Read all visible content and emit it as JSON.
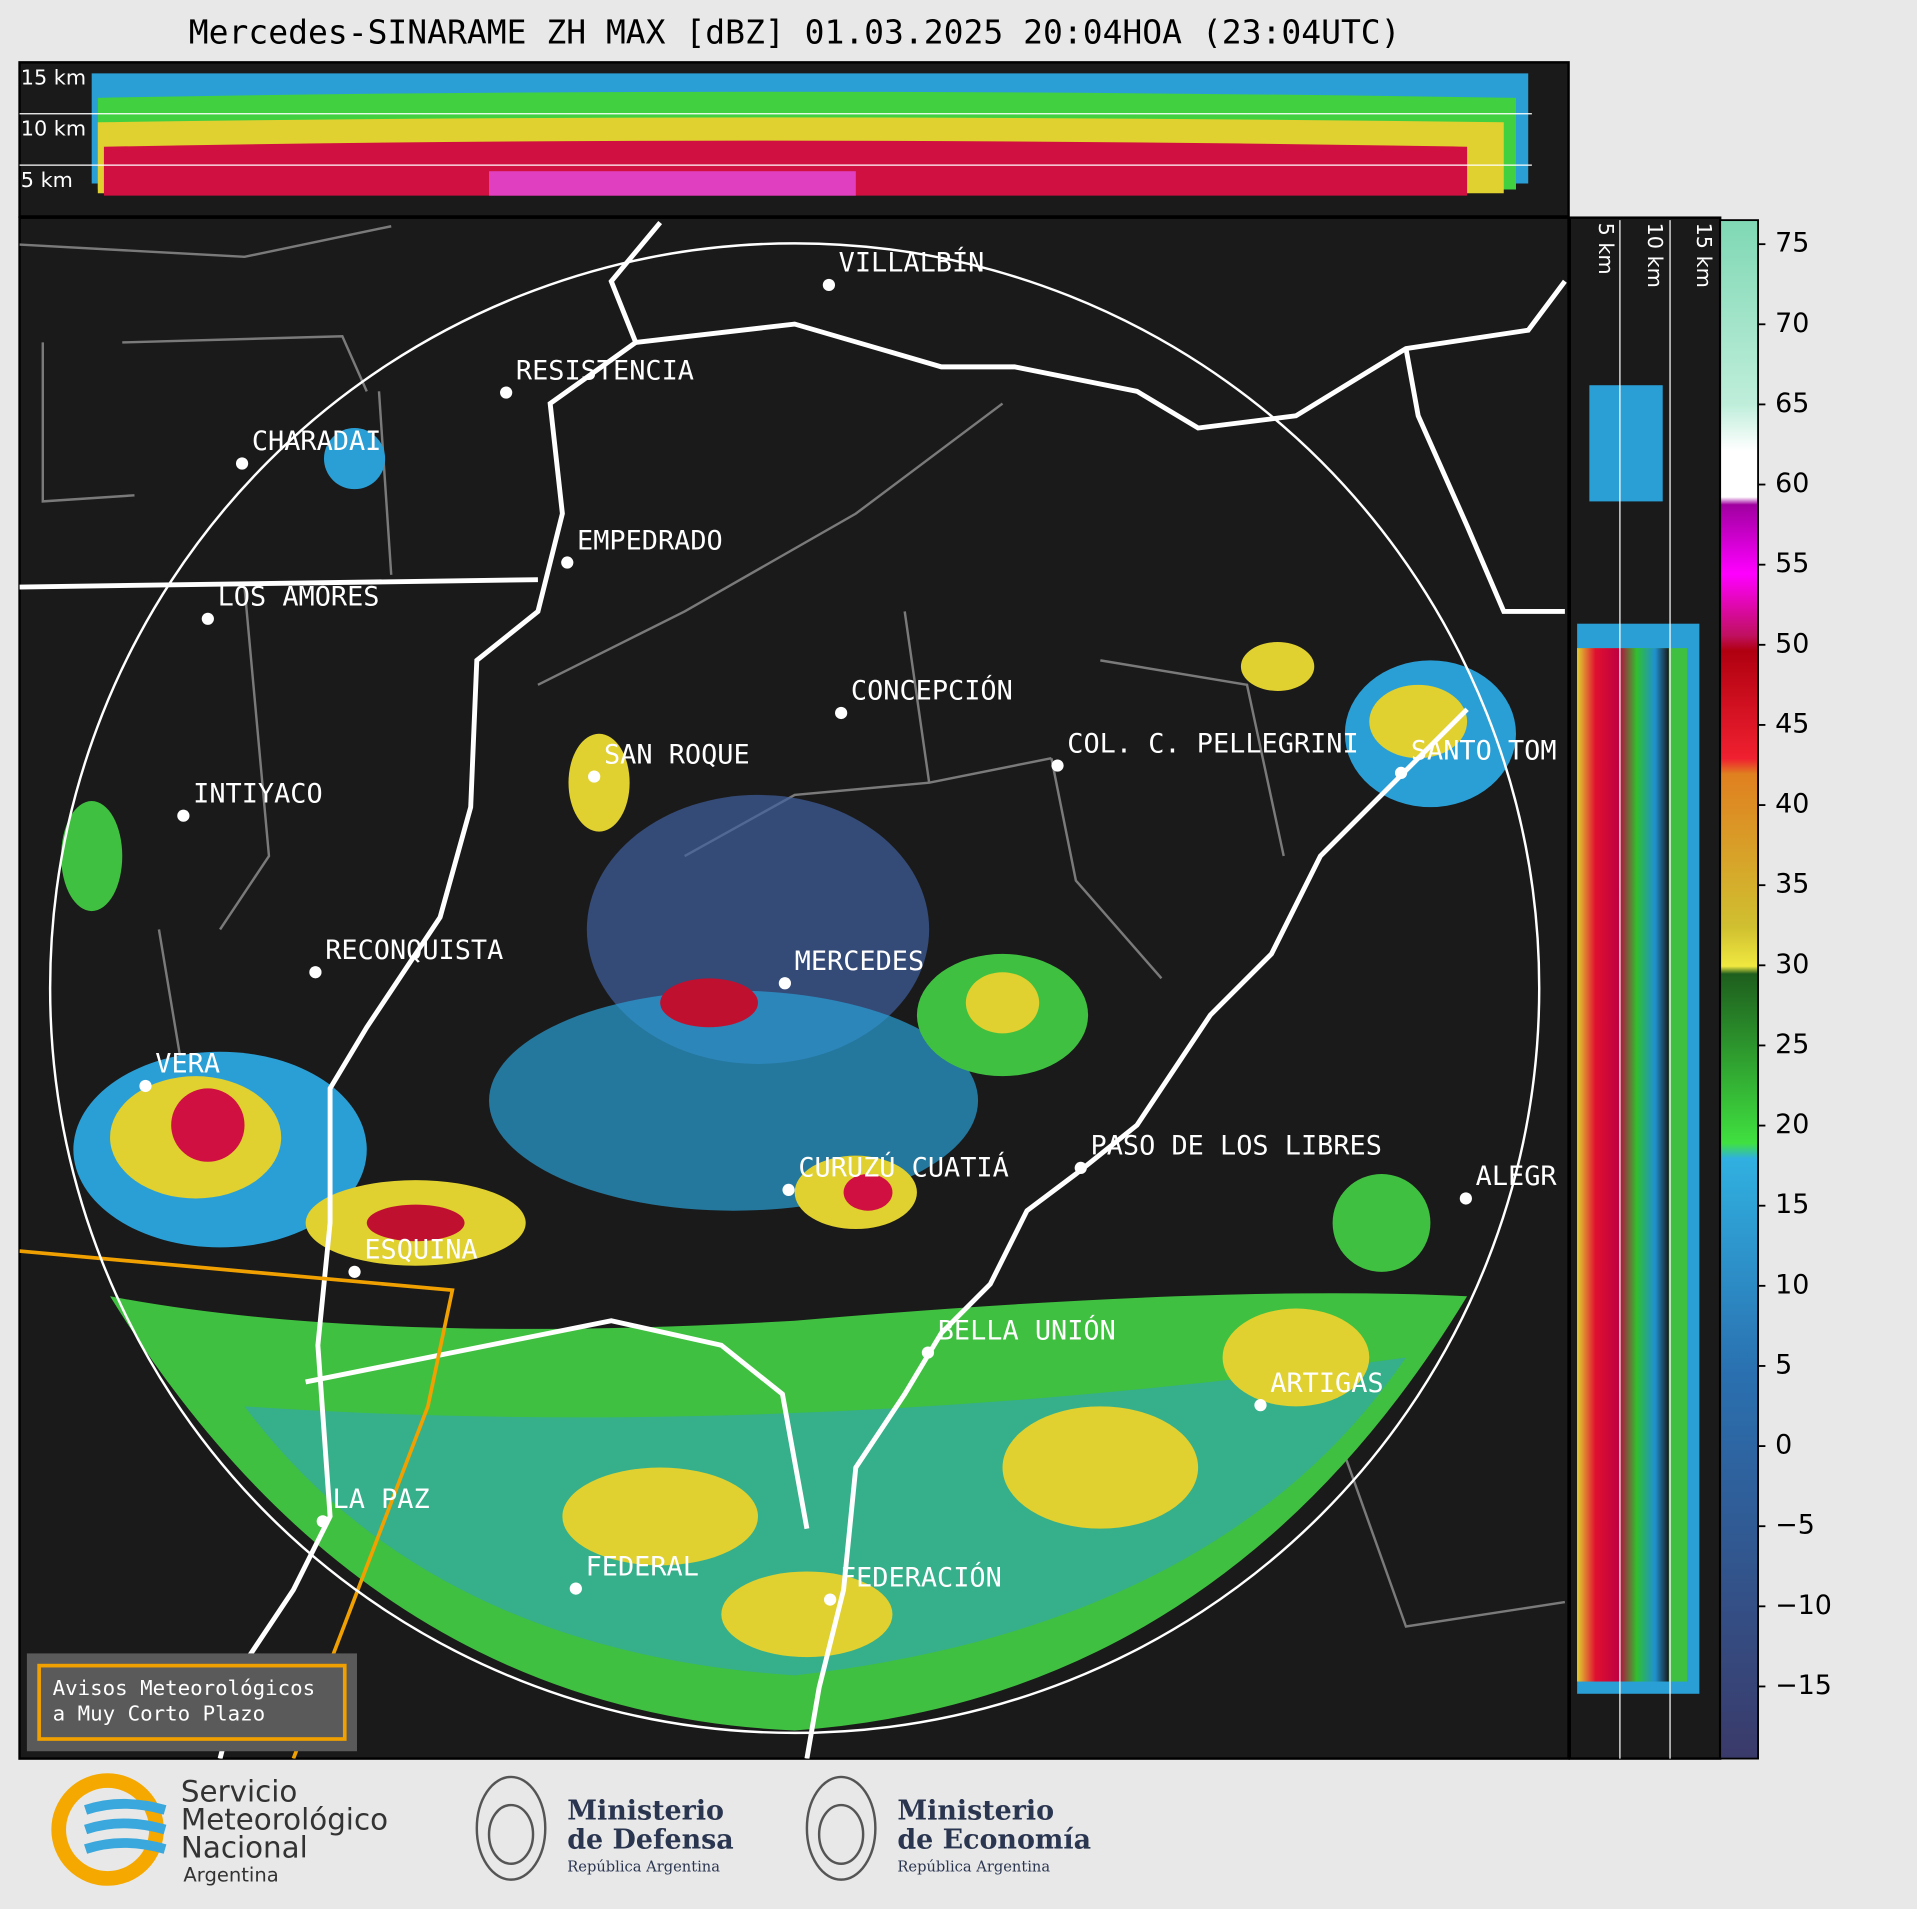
{
  "title": "Mercedes-SINARAME ZH MAX [dBZ] 01.03.2025 20:04HOA (23:04UTC)",
  "top_profile": {
    "height_labels": [
      "15 km",
      "10 km",
      "5 km"
    ]
  },
  "side_profile": {
    "height_labels": [
      "5 km",
      "10 km",
      "15 km"
    ]
  },
  "map": {
    "places": [
      "VILLALBÍN",
      "RESISTENCIA",
      "CHARADAI",
      "EMPEDRADO",
      "LOS AMORES",
      "CONCEPCIÓN",
      "SAN ROQUE",
      "COL. C. PELLEGRINI",
      "SANTO TOM",
      "INTIYACO",
      "RECONQUISTA",
      "MERCEDES",
      "VERA",
      "CURUZÚ CUATIÁ",
      "PASO DE LOS LIBRES",
      "ALEGR",
      "ESQUINA",
      "BELLA UNIÓN",
      "ARTIGAS",
      "LA PAZ",
      "FEDERAL",
      "FEDERACIÓN"
    ]
  },
  "colorbar": {
    "lim": [
      -19.5,
      76.5
    ],
    "ticks": [
      75,
      70,
      65,
      60,
      55,
      50,
      45,
      40,
      35,
      30,
      25,
      20,
      15,
      10,
      5,
      0,
      {
        "value": -5,
        "label": "−5"
      },
      {
        "value": -10,
        "label": "−10"
      },
      {
        "value": -15,
        "label": "−15"
      }
    ]
  },
  "warning_box": {
    "lines": [
      "Avisos Meteorológicos",
      "a Muy Corto Plazo"
    ]
  },
  "footer": {
    "smn": {
      "lines": [
        "Servicio",
        "Meteorológico",
        "Nacional"
      ],
      "country": "Argentina"
    },
    "defensa": {
      "lines": [
        "Ministerio",
        "de Defensa"
      ],
      "country": "República Argentina"
    },
    "economia": {
      "lines": [
        "Ministerio",
        "de Economía"
      ],
      "country": "República Argentina"
    }
  }
}
